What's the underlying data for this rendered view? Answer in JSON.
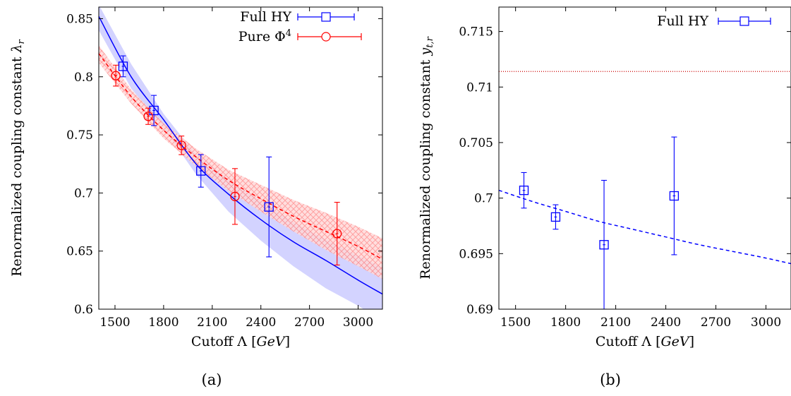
{
  "chart_data": [
    {
      "panel_label": "(a)",
      "type": "scatter",
      "xlabel": "Cutoff Λ [GeV]",
      "ylabel": "Renormalized coupling constant λr",
      "xlim": [
        1400,
        3150
      ],
      "ylim": [
        0.6,
        0.86
      ],
      "xticks": [
        1500,
        1800,
        2100,
        2400,
        2700,
        3000
      ],
      "yticks": [
        0.6,
        0.65,
        0.7,
        0.75,
        0.8,
        0.85
      ],
      "ytick_labels": [
        "0.6",
        "0.65",
        "0.7",
        "0.75",
        "0.8",
        "0.85"
      ],
      "legend_position": "top-right",
      "series": [
        {
          "name": "Full HY",
          "color": "#0000ff",
          "marker": "square",
          "x": [
            1550,
            1740,
            2030,
            2450
          ],
          "y": [
            0.809,
            0.771,
            0.719,
            0.688
          ],
          "yerr": [
            0.009,
            0.013,
            0.014,
            0.043
          ],
          "xerr": [
            8,
            8,
            8,
            8
          ],
          "fit": {
            "style": "solid",
            "x": [
              1400,
              1600,
              1800,
              2000,
              2200,
              2400,
              2600,
              2800,
              3000,
              3150
            ],
            "y": [
              0.852,
              0.8,
              0.763,
              0.725,
              0.699,
              0.677,
              0.658,
              0.642,
              0.625,
              0.613
            ]
          },
          "band": {
            "color": "#c8c8ff",
            "x": [
              1400,
              1600,
              1800,
              2000,
              2200,
              2400,
              2600,
              2800,
              3000,
              3150
            ],
            "upper": [
              0.862,
              0.811,
              0.768,
              0.733,
              0.712,
              0.693,
              0.675,
              0.66,
              0.646,
              0.636
            ],
            "lower": [
              0.84,
              0.79,
              0.756,
              0.716,
              0.684,
              0.659,
              0.637,
              0.618,
              0.603,
              0.59
            ]
          }
        },
        {
          "name": "Pure Φ4",
          "color": "#ff0000",
          "marker": "circle",
          "x": [
            1505,
            1705,
            1910,
            2240,
            2870
          ],
          "y": [
            0.801,
            0.766,
            0.741,
            0.697,
            0.665
          ],
          "yerr": [
            0.009,
            0.007,
            0.008,
            0.024,
            0.027
          ],
          "xerr": [
            8,
            8,
            8,
            8,
            8
          ],
          "fit": {
            "style": "dashed",
            "x": [
              1400,
              1600,
              1800,
              2000,
              2200,
              2400,
              2600,
              2800,
              3000,
              3150
            ],
            "y": [
              0.82,
              0.783,
              0.754,
              0.731,
              0.711,
              0.695,
              0.68,
              0.667,
              0.654,
              0.643
            ]
          },
          "band": {
            "color": "#ff9090",
            "x": [
              1400,
              1600,
              1800,
              2000,
              2200,
              2400,
              2600,
              2800,
              3000,
              3150
            ],
            "upper": [
              0.827,
              0.789,
              0.76,
              0.738,
              0.72,
              0.707,
              0.694,
              0.683,
              0.671,
              0.661
            ],
            "lower": [
              0.812,
              0.777,
              0.747,
              0.723,
              0.702,
              0.684,
              0.667,
              0.651,
              0.637,
              0.626
            ]
          }
        }
      ]
    },
    {
      "panel_label": "(b)",
      "type": "scatter",
      "xlabel": "Cutoff Λ [GeV]",
      "ylabel": "Renormalized coupling constant yt,r",
      "xlim": [
        1400,
        3150
      ],
      "ylim": [
        0.69,
        0.7172
      ],
      "xticks": [
        1500,
        1800,
        2100,
        2400,
        2700,
        3000
      ],
      "yticks": [
        0.69,
        0.695,
        0.7,
        0.705,
        0.71,
        0.715
      ],
      "ytick_labels": [
        "0.69",
        "0.695",
        "0.7",
        "0.705",
        "0.71",
        "0.715"
      ],
      "legend_position": "top-right",
      "reference_line": {
        "y": 0.7114,
        "color": "#cc0000",
        "style": "dotted"
      },
      "series": [
        {
          "name": "Full HY",
          "color": "#0000ff",
          "marker": "square",
          "x": [
            1550,
            1740,
            2030,
            2450
          ],
          "y": [
            0.7007,
            0.6983,
            0.6958,
            0.7002
          ],
          "yerr": [
            0.0016,
            0.0011,
            0.0058,
            0.0053
          ],
          "xerr": [
            8,
            8,
            8,
            8
          ],
          "fit": {
            "style": "dashed",
            "x": [
              1400,
              1600,
              1800,
              2000,
              2200,
              2400,
              2600,
              2800,
              3000,
              3150
            ],
            "y": [
              0.7007,
              0.6997,
              0.6988,
              0.6979,
              0.6972,
              0.6965,
              0.6958,
              0.6952,
              0.6946,
              0.6941
            ]
          }
        }
      ]
    }
  ]
}
